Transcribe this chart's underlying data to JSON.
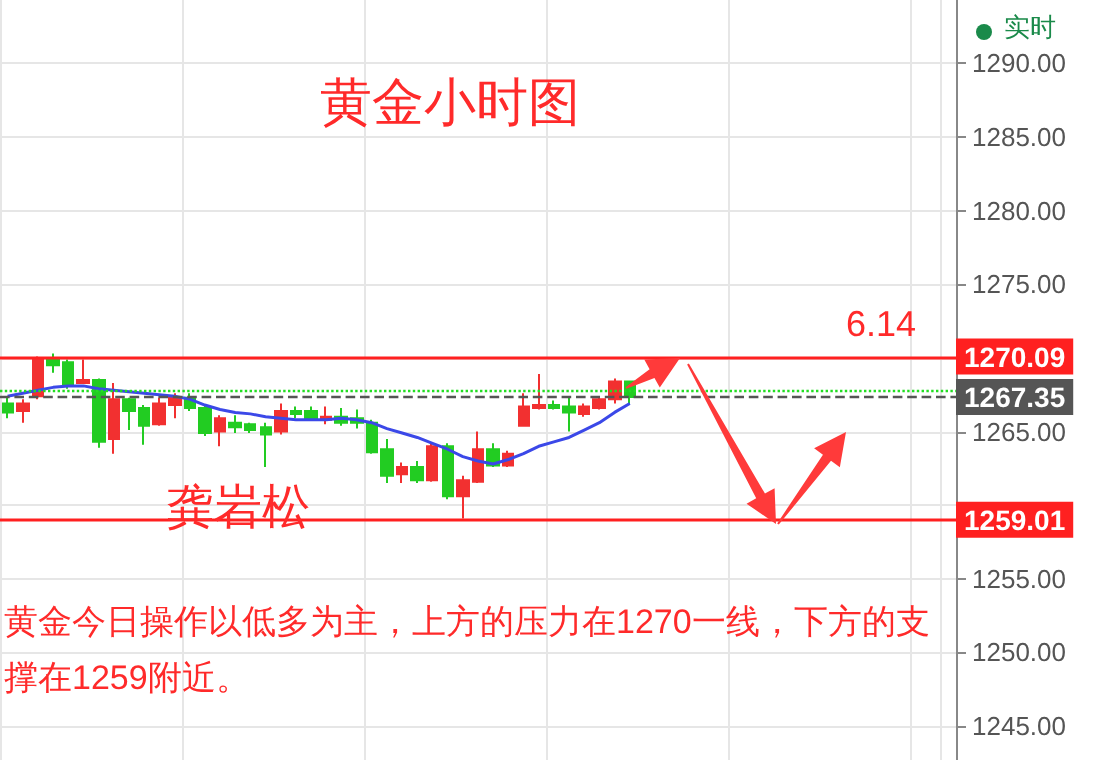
{
  "chart_data": {
    "type": "candlestick",
    "title": "黄金小时图",
    "annotations": [
      "龚岩松",
      "6.14",
      "黄金今日操作以低多为主，上方的压力在1270一线，下方的支撑在1259附近。",
      "实时"
    ],
    "categories": [
      null,
      null,
      null,
      null,
      null,
      null,
      null,
      null,
      null,
      null,
      null,
      null,
      null,
      null,
      null,
      null,
      null,
      null,
      null,
      null,
      null,
      null,
      null,
      null,
      null,
      null,
      null,
      null,
      null,
      null,
      null,
      null,
      null,
      null,
      null,
      null,
      null,
      null,
      null,
      null,
      null,
      null,
      null,
      null,
      null,
      null,
      null,
      null,
      null,
      null,
      null,
      null,
      null,
      null,
      null,
      null,
      null,
      null,
      null,
      null,
      null,
      null,
      null
    ],
    "ohlc": [
      [
        1266.9,
        1267.3,
        1265.9,
        1266.3
      ],
      [
        1266.4,
        1267.2,
        1265.6,
        1266.9
      ],
      [
        1267.4,
        1270.1,
        1267.2,
        1270.0
      ],
      [
        1269.9,
        1270.3,
        1269.0,
        1269.5
      ],
      [
        1269.7,
        1269.9,
        1267.9,
        1268.2
      ],
      [
        1268.3,
        1269.9,
        1268.3,
        1268.5
      ],
      [
        1268.5,
        1268.6,
        1263.9,
        1264.3
      ],
      [
        1264.5,
        1268.3,
        1263.5,
        1267.2
      ],
      [
        1267.2,
        1267.3,
        1265.1,
        1266.4
      ],
      [
        1266.6,
        1266.8,
        1264.1,
        1265.4
      ],
      [
        1265.5,
        1267.3,
        1265.4,
        1266.9
      ],
      [
        1266.8,
        1267.6,
        1265.9,
        1267.3
      ],
      [
        1267.3,
        1267.6,
        1266.4,
        1266.6
      ],
      [
        1266.6,
        1266.8,
        1264.7,
        1264.9
      ],
      [
        1265.0,
        1266.1,
        1264.0,
        1265.9
      ],
      [
        1265.6,
        1266.1,
        1264.9,
        1265.3
      ],
      [
        1265.5,
        1265.6,
        1264.9,
        1265.1
      ],
      [
        1265.3,
        1265.6,
        1262.6,
        1264.8
      ],
      [
        1265.0,
        1266.9,
        1264.8,
        1266.4
      ],
      [
        1266.4,
        1266.7,
        1265.9,
        1266.2
      ],
      [
        1266.4,
        1266.7,
        1265.8,
        1265.9
      ],
      [
        1265.8,
        1266.7,
        1265.5,
        1266.0
      ],
      [
        1266.0,
        1266.6,
        1265.4,
        1265.6
      ],
      [
        1265.9,
        1266.5,
        1265.2,
        1265.6
      ],
      [
        1265.6,
        1265.8,
        1263.5,
        1263.6
      ],
      [
        1263.8,
        1264.5,
        1261.5,
        1262.0
      ],
      [
        1262.1,
        1262.9,
        1261.5,
        1262.6
      ],
      [
        1262.6,
        1263.0,
        1261.5,
        1261.7
      ],
      [
        1261.7,
        1264.2,
        1261.6,
        1264.0
      ],
      [
        1264.0,
        1264.2,
        1260.4,
        1260.6
      ],
      [
        1260.6,
        1262.0,
        1259.1,
        1261.7
      ],
      [
        1261.6,
        1265.0,
        1261.5,
        1263.8
      ],
      [
        1263.8,
        1264.2,
        1262.6,
        1262.7
      ],
      [
        1262.7,
        1263.7,
        1262.6,
        1263.5
      ],
      [
        1265.4,
        1267.6,
        1265.4,
        1266.7
      ],
      [
        1266.6,
        1268.9,
        1266.5,
        1266.8
      ],
      [
        1266.8,
        1267.1,
        1266.5,
        1266.6
      ],
      [
        1266.7,
        1267.4,
        1265.0,
        1266.3
      ],
      [
        1266.2,
        1266.9,
        1266.0,
        1266.7
      ],
      [
        1266.6,
        1267.4,
        1266.5,
        1267.2
      ],
      [
        1267.2,
        1268.6,
        1266.9,
        1268.4
      ],
      [
        1268.4,
        1268.4,
        1266.8,
        1267.35
      ],
      null,
      null,
      null,
      null,
      null,
      null,
      null,
      null,
      null,
      null,
      null,
      null,
      null,
      null,
      null,
      null,
      null,
      null,
      null,
      null,
      null
    ],
    "colors": [
      "#22cc22",
      "#f23030",
      "#f23030",
      "#22cc22",
      "#22cc22",
      "#f23030",
      "#22cc22",
      "#f23030",
      "#22cc22",
      "#22cc22",
      "#f23030",
      "#f23030",
      "#22cc22",
      "#22cc22",
      "#f23030",
      "#22cc22",
      "#22cc22",
      "#22cc22",
      "#f23030",
      "#22cc22",
      "#22cc22",
      "#f23030",
      "#22cc22",
      "#22cc22",
      "#22cc22",
      "#22cc22",
      "#f23030",
      "#22cc22",
      "#f23030",
      "#22cc22",
      "#f23030",
      "#f23030",
      "#22cc22",
      "#f23030",
      "#f23030",
      "#f23030",
      "#22cc22",
      "#22cc22",
      "#f23030",
      "#f23030",
      "#f23030",
      "#22cc22",
      null,
      null,
      null,
      null,
      null,
      null,
      null,
      null,
      null,
      null,
      null,
      null,
      null,
      null,
      null,
      null,
      null,
      null,
      null,
      null,
      null
    ],
    "series": [
      {
        "type": "line",
        "color": "#3b48e8",
        "values": [
          1267.4,
          1267.6,
          1267.8,
          1268.0,
          1268.1,
          1268.1,
          1267.9,
          1267.8,
          1267.7,
          1267.6,
          1267.5,
          1267.4,
          1267.2,
          1266.8,
          1266.5,
          1266.3,
          1266.2,
          1266.0,
          1265.9,
          1265.8,
          1265.8,
          1265.8,
          1265.9,
          1265.8,
          1265.6,
          1265.2,
          1264.9,
          1264.6,
          1264.2,
          1263.8,
          1263.3,
          1263.0,
          1262.8,
          1263.1,
          1263.5,
          1264.0,
          1264.3,
          1264.6,
          1265.1,
          1265.6,
          1266.3,
          1266.9,
          null,
          null,
          null,
          null,
          null,
          null,
          null,
          null,
          null,
          null,
          null,
          null,
          null,
          null,
          null,
          null,
          null,
          null,
          null,
          null,
          null
        ]
      }
    ],
    "ylim": [
      1242.7,
      1294.3
    ],
    "yticks": [
      {
        "value": 1245,
        "label": "1245.00"
      },
      {
        "value": 1250,
        "label": "1250.00"
      },
      {
        "value": 1255,
        "label": "1255.00"
      },
      {
        "value": 1260,
        "label": null
      },
      {
        "value": 1265,
        "label": "1265.00"
      },
      {
        "value": 1270,
        "label": null
      },
      {
        "value": 1275,
        "label": "1275.00"
      },
      {
        "value": 1280,
        "label": "1280.00"
      },
      {
        "value": 1285,
        "label": "1285.00"
      },
      {
        "value": 1290,
        "label": "1290.00"
      }
    ],
    "ref_lines": [
      {
        "axis": "y",
        "value": 1270.09,
        "label": "1270.09",
        "color": "#ff2020",
        "line_style": "solid"
      },
      {
        "axis": "y",
        "value": 1259.01,
        "label": "1259.01",
        "color": "#ff2020",
        "line_style": "solid"
      },
      {
        "axis": "y",
        "value": 1267.35,
        "label": "1267.35",
        "color": "#555555",
        "line_style": "dashed"
      },
      {
        "axis": "y",
        "value": 1267.8,
        "color": "#22dd22",
        "line_style": "dotted"
      }
    ],
    "grid": true,
    "tick_labels": "y"
  }
}
